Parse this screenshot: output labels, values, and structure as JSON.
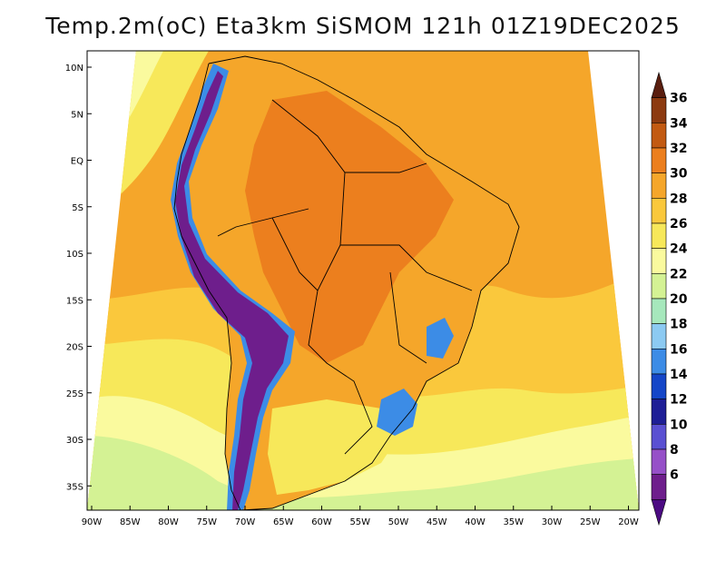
{
  "title": "Temp.2m(oC) Eta3km SiSMOM 121h 01Z19DEC2025",
  "axes": {
    "lat_labels": [
      "10N",
      "5N",
      "EQ",
      "5S",
      "10S",
      "15S",
      "20S",
      "25S",
      "30S",
      "35S"
    ],
    "lat_values": [
      10,
      5,
      0,
      -5,
      -10,
      -15,
      -20,
      -25,
      -30,
      -35
    ],
    "lon_labels": [
      "90W",
      "85W",
      "80W",
      "75W",
      "70W",
      "65W",
      "60W",
      "55W",
      "50W",
      "45W",
      "40W",
      "35W",
      "30W",
      "25W",
      "20W"
    ],
    "lon_values": [
      -90,
      -85,
      -80,
      -75,
      -70,
      -65,
      -60,
      -55,
      -50,
      -45,
      -40,
      -35,
      -30,
      -25,
      -20
    ]
  },
  "colorbar": {
    "labels": [
      "36",
      "34",
      "32",
      "30",
      "28",
      "26",
      "24",
      "22",
      "20",
      "18",
      "16",
      "14",
      "12",
      "10",
      "8",
      "6"
    ],
    "colors": [
      "#5a1e0f",
      "#8c3a10",
      "#c25a12",
      "#ec7f1e",
      "#f5a62a",
      "#fac83c",
      "#f7e85a",
      "#fafa9e",
      "#d4f294",
      "#a6e8bc",
      "#8ccaf2",
      "#3c8ce6",
      "#1446c8",
      "#1e1e96",
      "#5a50d2",
      "#9650c8",
      "#6e1e8c",
      "#4b0a82"
    ],
    "units": "oC"
  },
  "palette": {
    "ocean_warm": "#f5a62a",
    "ocean_mid": "#fac83c",
    "ocean_mild": "#f7e85a",
    "ocean_cool": "#fafa9e",
    "ocean_cold": "#d4f294",
    "land_hot": "#ec7f1e",
    "andes_cold": "#6e1e8c",
    "andes_cool": "#3c8ce6",
    "border": "#000000"
  }
}
